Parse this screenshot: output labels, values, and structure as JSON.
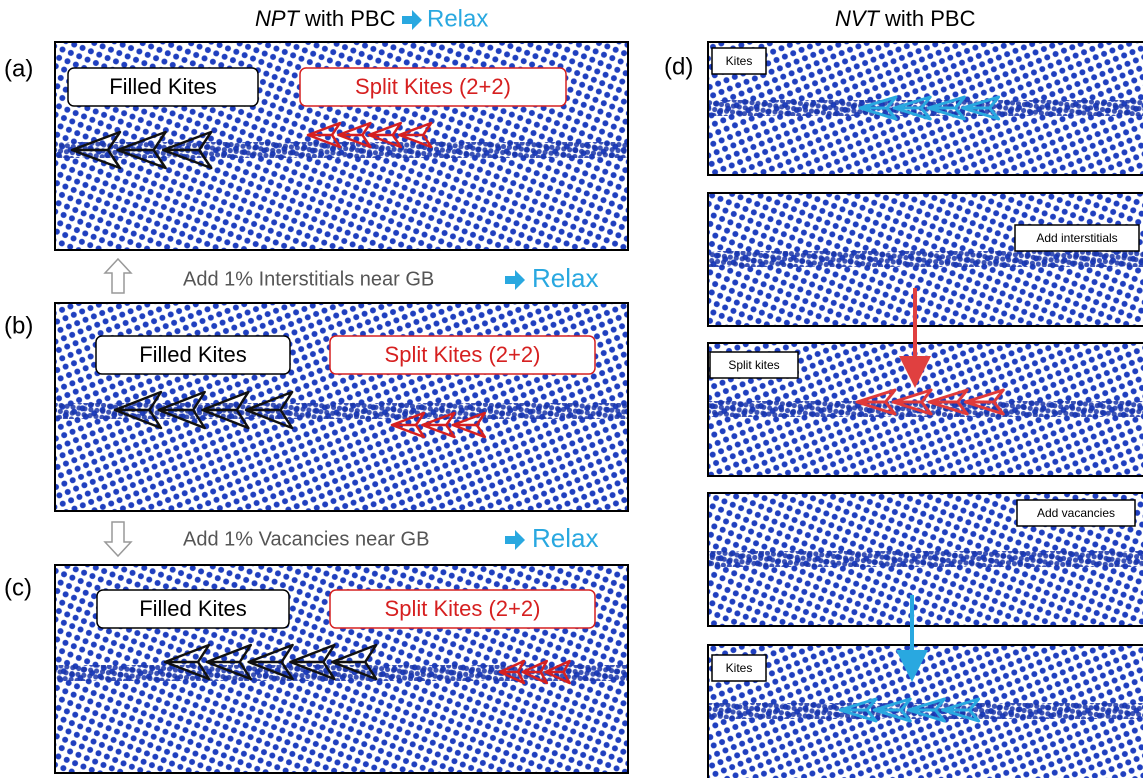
{
  "header": {
    "left": {
      "italic": "NPT",
      "text": "with PBC",
      "action": "Relax"
    },
    "right": {
      "italic": "NVT",
      "text": "with PBC"
    }
  },
  "left_panels": [
    {
      "label": "(a)",
      "filled": "Filled Kites",
      "split": "Split Kites (2+2)"
    },
    {
      "label": "(b)",
      "filled": "Filled Kites",
      "split": "Split Kites (2+2)"
    },
    {
      "label": "(c)",
      "filled": "Filled Kites",
      "split": "Split Kites (2+2)"
    }
  ],
  "steps": [
    {
      "text": "Add 1% Interstitials near GB",
      "action": "Relax"
    },
    {
      "text": "Add 1% Vacancies near GB",
      "action": "Relax"
    }
  ],
  "right_panel": {
    "label": "(d)",
    "tags": [
      "Kites",
      "Add interstitials",
      "Split kites",
      "Add vacancies",
      "Kites"
    ]
  }
}
